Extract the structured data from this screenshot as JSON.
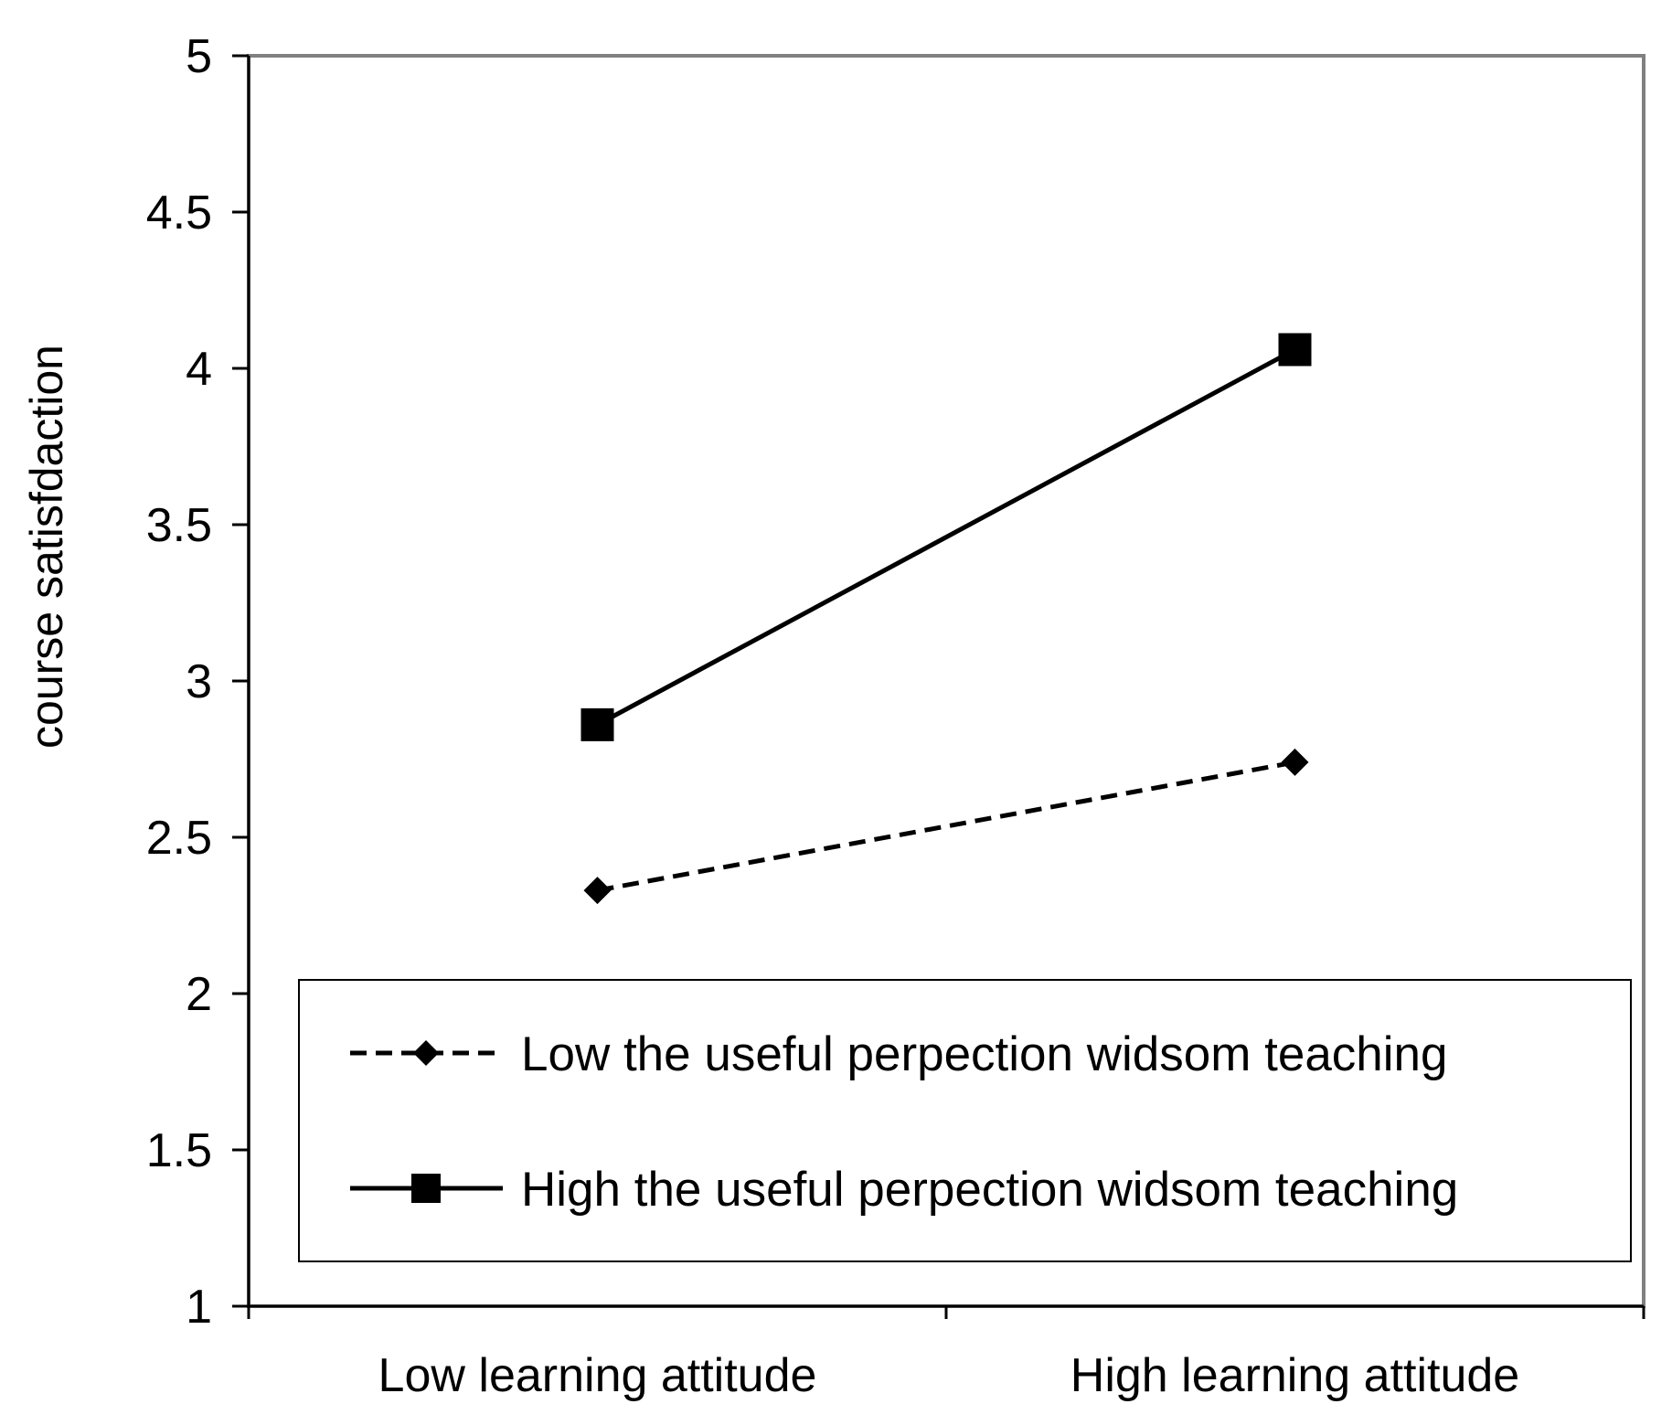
{
  "chart_data": {
    "type": "line",
    "title": "",
    "xlabel": "",
    "ylabel": "course satisfdaction",
    "categories": [
      "Low learning attitude",
      "High learning attitude"
    ],
    "ylim": [
      1,
      5
    ],
    "yticks": [
      "1",
      "1.5",
      "2",
      "2.5",
      "3",
      "3.5",
      "4",
      "4.5",
      "5"
    ],
    "grid": false,
    "legend_position": "bottom-inside",
    "series": [
      {
        "name": "Low the useful perpection widsom teaching",
        "values": [
          2.33,
          2.74
        ],
        "line_style": "dashed",
        "marker": "diamond",
        "color": "#000000"
      },
      {
        "name": "High the useful perpection widsom teaching",
        "values": [
          2.86,
          4.06
        ],
        "line_style": "solid",
        "marker": "square",
        "color": "#000000"
      }
    ]
  }
}
